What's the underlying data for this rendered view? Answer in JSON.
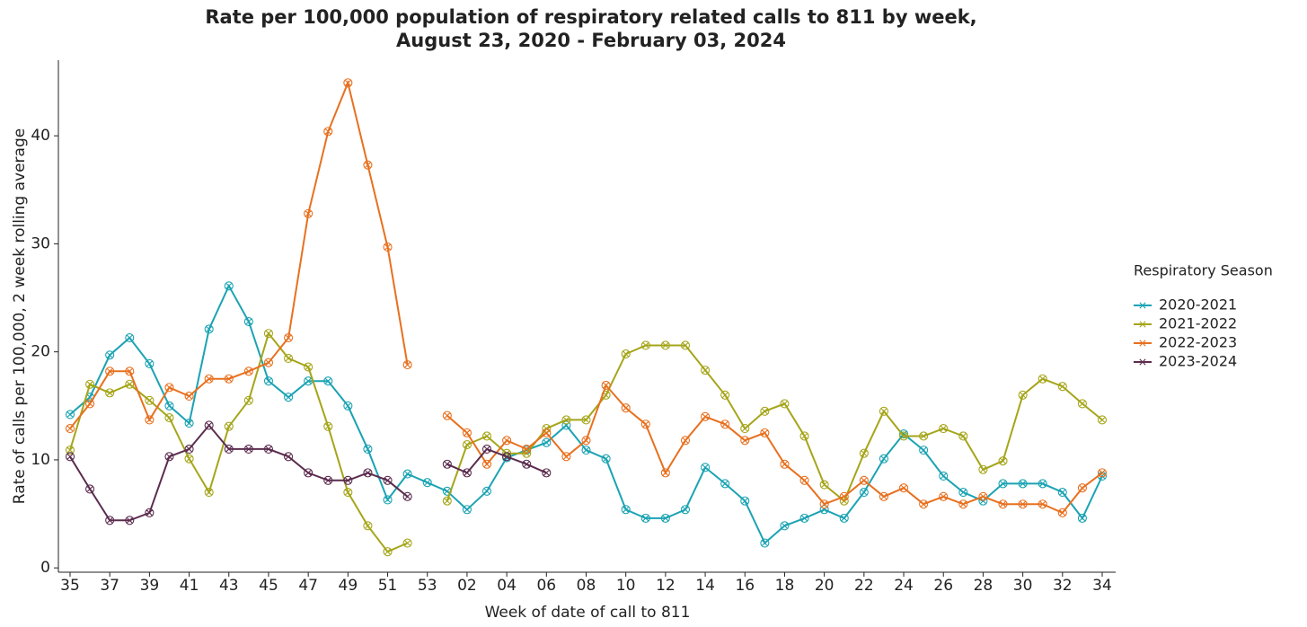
{
  "chart_data": {
    "type": "line",
    "title": "Rate per 100,000 population of respiratory related calls to 811 by week,",
    "subtitle": "August 23, 2020 - February 03, 2024",
    "x_label": "Week of date of call to 811",
    "y_label": "Rate of calls per 100,000, 2 week rolling average",
    "legend_title": "Respiratory Season",
    "categories": [
      "35",
      null,
      "37",
      null,
      "39",
      null,
      "41",
      null,
      "43",
      null,
      "45",
      null,
      "47",
      null,
      "49",
      null,
      "51",
      null,
      "53",
      null,
      "02",
      null,
      "04",
      null,
      "06",
      null,
      "08",
      null,
      "10",
      null,
      "12",
      null,
      "14",
      null,
      "16",
      null,
      "18",
      null,
      "20",
      null,
      "22",
      null,
      "24",
      null,
      "26",
      null,
      "28",
      null,
      "30",
      null,
      "32",
      null,
      "34"
    ],
    "ylim": [
      -0.4,
      47
    ],
    "yticks": [
      0,
      10,
      20,
      30,
      40
    ],
    "series": [
      {
        "name": "2020-2021",
        "color": "#1ba3b3",
        "values": [
          14.2,
          15.8,
          19.7,
          21.3,
          18.9,
          15.0,
          13.4,
          22.1,
          26.1,
          22.8,
          17.3,
          15.8,
          17.3,
          17.3,
          15.0,
          11.0,
          6.3,
          8.7,
          7.9,
          7.1,
          5.4,
          7.1,
          10.2,
          10.9,
          11.6,
          13.2,
          10.9,
          10.1,
          5.4,
          4.6,
          4.6,
          5.4,
          9.3,
          7.8,
          6.2,
          2.3,
          3.9,
          4.6,
          5.4,
          4.6,
          7.0,
          10.1,
          12.4,
          10.9,
          8.5,
          7.0,
          6.2,
          7.8,
          7.8,
          7.8,
          7.0,
          4.6,
          8.5
        ]
      },
      {
        "name": "2021-2022",
        "color": "#a5a51a",
        "values": [
          10.9,
          17.0,
          16.2,
          17.0,
          15.5,
          13.9,
          10.1,
          7.0,
          13.1,
          15.5,
          21.7,
          19.4,
          18.6,
          13.1,
          7.0,
          3.9,
          1.5,
          2.3,
          null,
          6.2,
          11.4,
          12.2,
          10.6,
          10.6,
          12.9,
          13.7,
          13.7,
          16.0,
          19.8,
          20.6,
          20.6,
          20.6,
          18.3,
          16.0,
          12.9,
          14.5,
          15.2,
          12.2,
          7.7,
          6.2,
          10.6,
          14.5,
          12.2,
          12.2,
          12.9,
          12.2,
          9.1,
          9.9,
          16.0,
          17.5,
          16.8,
          15.2,
          13.7
        ]
      },
      {
        "name": "2022-2023",
        "color": "#e8701f",
        "values": [
          12.9,
          15.2,
          18.2,
          18.2,
          13.7,
          16.7,
          15.9,
          17.5,
          17.5,
          18.2,
          19.0,
          21.3,
          32.8,
          40.4,
          44.9,
          37.3,
          29.7,
          18.8,
          null,
          14.1,
          12.5,
          9.6,
          11.8,
          11.0,
          12.5,
          10.3,
          11.8,
          16.9,
          14.8,
          13.3,
          8.8,
          11.8,
          14.0,
          13.3,
          11.8,
          12.5,
          9.6,
          8.1,
          5.9,
          6.6,
          8.1,
          6.6,
          7.4,
          5.9,
          6.6,
          5.9,
          6.6,
          5.9,
          5.9,
          5.9,
          5.1,
          7.4,
          8.8
        ]
      },
      {
        "name": "2023-2024",
        "color": "#5b2c4e",
        "values": [
          10.3,
          7.3,
          4.4,
          4.4,
          5.1,
          10.3,
          11.0,
          13.2,
          11.0,
          11.0,
          11.0,
          10.3,
          8.8,
          8.1,
          8.1,
          8.8,
          8.1,
          6.6,
          null,
          9.6,
          8.8,
          11.0,
          10.3,
          9.6,
          8.8,
          null,
          null,
          null,
          null,
          null,
          null,
          null,
          null,
          null,
          null,
          null,
          null,
          null,
          null,
          null,
          null,
          null,
          null,
          null,
          null,
          null,
          null,
          null,
          null,
          null,
          null,
          null,
          null
        ]
      }
    ]
  }
}
